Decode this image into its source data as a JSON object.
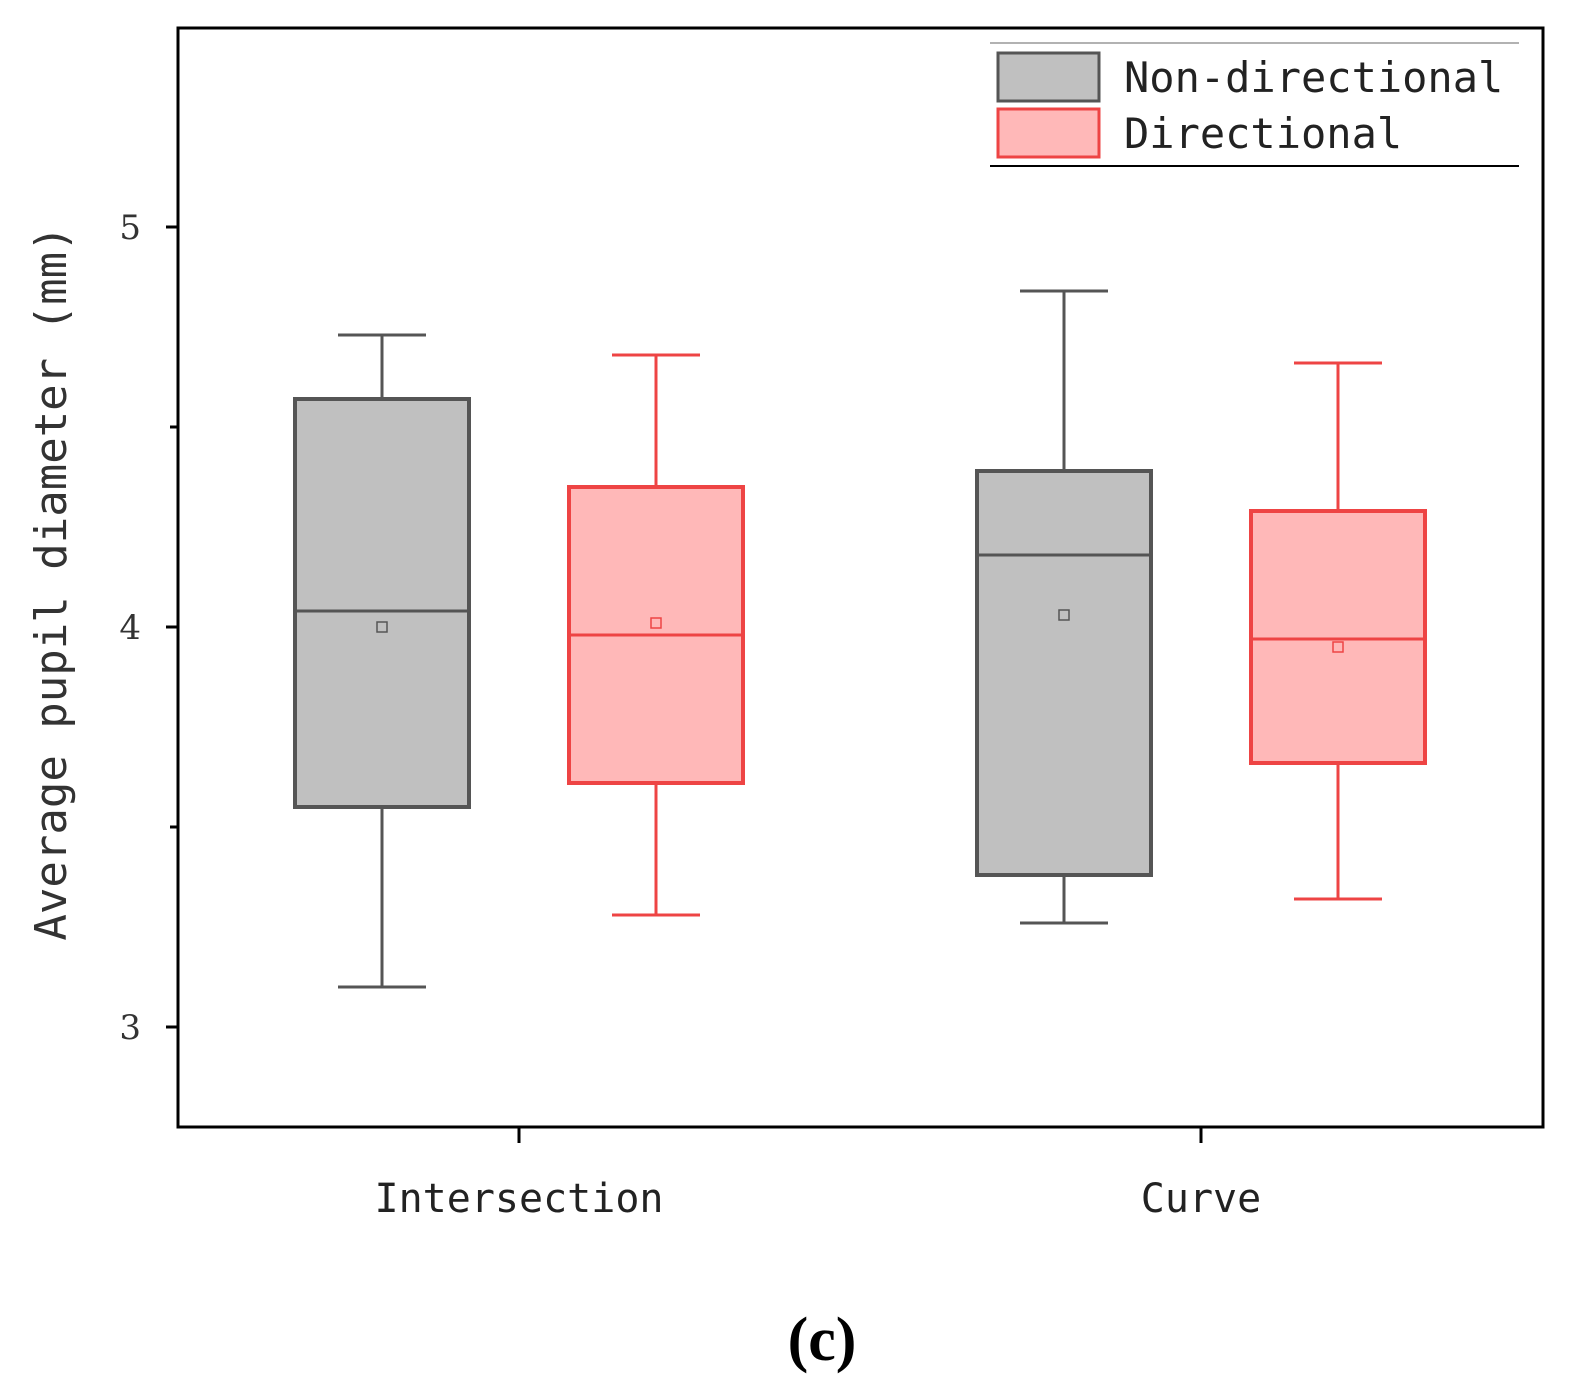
{
  "chart_data": {
    "type": "box",
    "title": "",
    "panel_label": "(c)",
    "xlabel": "",
    "ylabel": "Average pupil diameter (mm)",
    "ylim": [
      2.75,
      5.5
    ],
    "yticks": [
      3,
      4,
      5
    ],
    "ytick_labels": [
      "3",
      "4",
      "5"
    ],
    "yminor_ticks": [
      3.5,
      4.5
    ],
    "categories": [
      "Intersection",
      "Curve"
    ],
    "legend": {
      "position": "top-right",
      "entries": [
        "Non-directional",
        "Directional"
      ]
    },
    "series": [
      {
        "name": "Non-directional",
        "fill": "#c0c0c0",
        "stroke": "#555555",
        "boxes": [
          {
            "category": "Intersection",
            "whisker_low": 3.1,
            "q1": 3.55,
            "median": 4.04,
            "q3": 4.57,
            "whisker_high": 4.73,
            "mean": 4.0
          },
          {
            "category": "Curve",
            "whisker_low": 3.26,
            "q1": 3.38,
            "median": 4.18,
            "q3": 4.39,
            "whisker_high": 4.84,
            "mean": 4.03
          }
        ]
      },
      {
        "name": "Directional",
        "fill": "#ffb8b8",
        "stroke": "#ee4444",
        "boxes": [
          {
            "category": "Intersection",
            "whisker_low": 3.28,
            "q1": 3.61,
            "median": 3.98,
            "q3": 4.35,
            "whisker_high": 4.68,
            "mean": 4.01
          },
          {
            "category": "Curve",
            "whisker_low": 3.32,
            "q1": 3.66,
            "median": 3.97,
            "q3": 4.29,
            "whisker_high": 4.66,
            "mean": 3.95
          }
        ]
      }
    ]
  }
}
